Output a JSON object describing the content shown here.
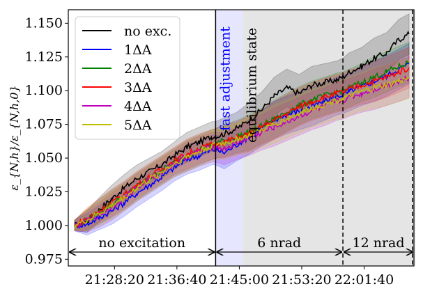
{
  "chart_data": {
    "type": "line",
    "title": "",
    "xlabel": "",
    "ylabel": "ε_{N,h}/ε_{N,h,0}",
    "xlim_seconds_from_start": [
      0,
      2680
    ],
    "x_start_clock": "21:23:00",
    "ylim": [
      0.97,
      1.16
    ],
    "x_ticks": [
      {
        "label": "21:28:20",
        "t": 320
      },
      {
        "label": "21:36:40",
        "t": 820
      },
      {
        "label": "21:45:00",
        "t": 1320
      },
      {
        "label": "21:53:20",
        "t": 1820
      },
      {
        "label": "22:01:40",
        "t": 2320
      }
    ],
    "y_ticks": [
      {
        "label": "0.975",
        "v": 0.975
      },
      {
        "label": "1.000",
        "v": 1.0
      },
      {
        "label": "1.025",
        "v": 1.025
      },
      {
        "label": "1.050",
        "v": 1.05
      },
      {
        "label": "1.075",
        "v": 1.075
      },
      {
        "label": "1.100",
        "v": 1.1
      },
      {
        "label": "1.125",
        "v": 1.125
      },
      {
        "label": "1.150",
        "v": 1.15
      }
    ],
    "regions": [
      {
        "name": "fast-adjustment",
        "label": "fast adjustment",
        "t_start": 1130,
        "t_end": 1350,
        "color": "#e6e6ff"
      },
      {
        "name": "equilibrium",
        "label": "equilibrium state",
        "t_start": 1350,
        "t_end": 2680,
        "color": "#e5e5e5"
      },
      {
        "name": "six-nrad-shade",
        "label": "",
        "t_start": 1130,
        "t_end": 1350,
        "color": "#e5e5e5"
      }
    ],
    "vlines": [
      {
        "t": 1130,
        "style": "solid"
      },
      {
        "t": 2150,
        "style": "dashed"
      },
      {
        "t": 2680,
        "style": "dashed"
      }
    ],
    "phase_arrows": [
      {
        "label": "no excitation",
        "t_start": 0,
        "t_end": 1130
      },
      {
        "label": "6 nrad",
        "t_start": 1130,
        "t_end": 2150
      },
      {
        "label": "12 nrad",
        "t_start": 2150,
        "t_end": 2680
      }
    ],
    "legend_position": "top-left",
    "series": [
      {
        "name": "no exc.",
        "color": "#000000",
        "band_color": "#000000",
        "x": [
          0,
          100,
          200,
          300,
          400,
          500,
          600,
          700,
          800,
          900,
          1000,
          1100,
          1130,
          1200,
          1300,
          1400,
          1500,
          1600,
          1700,
          1800,
          1900,
          2000,
          2100,
          2150,
          2200,
          2300,
          2400,
          2500,
          2600,
          2680
        ],
        "y": [
          1.0,
          1.003,
          1.012,
          1.02,
          1.028,
          1.035,
          1.04,
          1.045,
          1.052,
          1.058,
          1.062,
          1.066,
          1.066,
          1.068,
          1.072,
          1.078,
          1.086,
          1.096,
          1.102,
          1.098,
          1.104,
          1.106,
          1.108,
          1.11,
          1.114,
          1.118,
          1.124,
          1.128,
          1.138,
          1.142
        ]
      },
      {
        "name": "1ΔA",
        "color": "#0000ff",
        "band_color": "#0000ff",
        "x": [
          0,
          100,
          200,
          300,
          400,
          500,
          600,
          700,
          800,
          900,
          1000,
          1100,
          1130,
          1200,
          1300,
          1400,
          1500,
          1600,
          1700,
          1800,
          1900,
          2000,
          2100,
          2150,
          2200,
          2300,
          2400,
          2500,
          2600,
          2680
        ],
        "y": [
          1.0,
          1.001,
          1.006,
          1.011,
          1.017,
          1.024,
          1.03,
          1.036,
          1.043,
          1.049,
          1.052,
          1.056,
          1.056,
          1.054,
          1.06,
          1.066,
          1.072,
          1.078,
          1.082,
          1.085,
          1.088,
          1.092,
          1.096,
          1.097,
          1.099,
          1.103,
          1.107,
          1.111,
          1.116,
          1.12
        ]
      },
      {
        "name": "2ΔA",
        "color": "#008000",
        "band_color": "#008000",
        "x": [
          0,
          100,
          200,
          300,
          400,
          500,
          600,
          700,
          800,
          900,
          1000,
          1100,
          1130,
          1200,
          1300,
          1400,
          1500,
          1600,
          1700,
          1800,
          1900,
          2000,
          2100,
          2150,
          2200,
          2300,
          2400,
          2500,
          2600,
          2680
        ],
        "y": [
          1.0,
          1.004,
          1.01,
          1.016,
          1.022,
          1.029,
          1.035,
          1.041,
          1.047,
          1.052,
          1.056,
          1.06,
          1.061,
          1.063,
          1.066,
          1.069,
          1.074,
          1.079,
          1.084,
          1.089,
          1.093,
          1.096,
          1.099,
          1.1,
          1.102,
          1.106,
          1.11,
          1.114,
          1.118,
          1.121
        ]
      },
      {
        "name": "3ΔA",
        "color": "#ff0000",
        "band_color": "#ff0000",
        "x": [
          0,
          100,
          200,
          300,
          400,
          500,
          600,
          700,
          800,
          900,
          1000,
          1100,
          1130,
          1200,
          1300,
          1400,
          1500,
          1600,
          1700,
          1800,
          1900,
          2000,
          2100,
          2150,
          2200,
          2300,
          2400,
          2500,
          2600,
          2680
        ],
        "y": [
          1.0,
          1.005,
          1.011,
          1.017,
          1.023,
          1.03,
          1.036,
          1.042,
          1.048,
          1.053,
          1.057,
          1.06,
          1.061,
          1.062,
          1.065,
          1.068,
          1.073,
          1.078,
          1.083,
          1.088,
          1.092,
          1.095,
          1.098,
          1.099,
          1.101,
          1.104,
          1.107,
          1.11,
          1.114,
          1.117
        ]
      },
      {
        "name": "4ΔA",
        "color": "#bf00bf",
        "band_color": "#bf00bf",
        "x": [
          0,
          100,
          200,
          300,
          400,
          500,
          600,
          700,
          800,
          900,
          1000,
          1100,
          1130,
          1200,
          1300,
          1400,
          1500,
          1600,
          1700,
          1800,
          1900,
          2000,
          2100,
          2150,
          2200,
          2300,
          2400,
          2500,
          2600,
          2680
        ],
        "y": [
          1.0,
          1.003,
          1.008,
          1.014,
          1.021,
          1.028,
          1.034,
          1.04,
          1.046,
          1.051,
          1.055,
          1.058,
          1.058,
          1.057,
          1.061,
          1.065,
          1.069,
          1.073,
          1.077,
          1.081,
          1.085,
          1.088,
          1.092,
          1.093,
          1.095,
          1.098,
          1.101,
          1.104,
          1.107,
          1.11
        ]
      },
      {
        "name": "5ΔA",
        "color": "#bfbf00",
        "band_color": "#bfbf00",
        "x": [
          0,
          100,
          200,
          300,
          400,
          500,
          600,
          700,
          800,
          900,
          1000,
          1100,
          1130,
          1200,
          1300,
          1400,
          1500,
          1600,
          1700,
          1800,
          1900,
          2000,
          2100,
          2150,
          2200,
          2300,
          2400,
          2500,
          2600,
          2680
        ],
        "y": [
          1.0,
          1.004,
          1.009,
          1.015,
          1.021,
          1.028,
          1.034,
          1.04,
          1.046,
          1.051,
          1.055,
          1.059,
          1.06,
          1.061,
          1.064,
          1.067,
          1.071,
          1.075,
          1.079,
          1.083,
          1.087,
          1.09,
          1.093,
          1.094,
          1.096,
          1.099,
          1.102,
          1.104,
          1.107,
          1.109
        ]
      }
    ],
    "band_halfwidth": [
      0.004,
      0.008,
      0.009,
      0.01,
      0.01,
      0.01,
      0.01,
      0.01,
      0.01,
      0.011,
      0.011,
      0.011,
      0.011,
      0.012,
      0.012,
      0.013,
      0.013,
      0.014,
      0.014,
      0.014,
      0.014,
      0.014,
      0.014,
      0.014,
      0.014,
      0.014,
      0.015,
      0.015,
      0.015,
      0.015
    ]
  }
}
